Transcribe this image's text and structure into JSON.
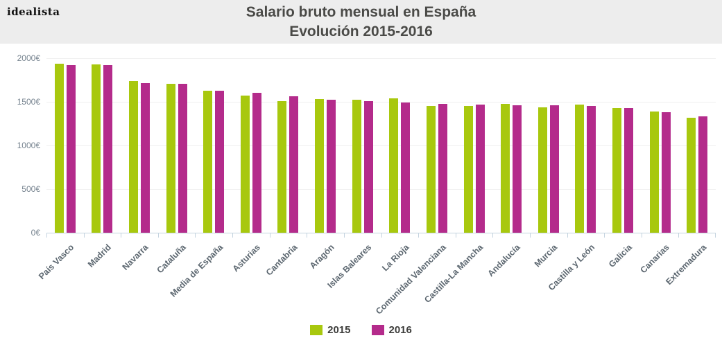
{
  "logo_text": "idealista",
  "header": {
    "title_line1": "Salario bruto mensual en España",
    "title_line2": "Evolución 2015-2016"
  },
  "colors": {
    "header_bg": "#ededed",
    "title_text": "#4a4a47",
    "logo_text": "#111111",
    "series_2015": "#a8c80e",
    "series_2016": "#b42b8b",
    "gridline": "#f0f0f0",
    "axis_line": "#c4d3df",
    "y_label": "#75828e",
    "x_label": "#5c6770",
    "legend_text": "#3d3d3b"
  },
  "chart_data": {
    "type": "bar",
    "title": "Salario bruto mensual en España — Evolución 2015-2016",
    "categories": [
      "País Vasco",
      "Madrid",
      "Navarra",
      "Cataluña",
      "Media de España",
      "Asturias",
      "Cantabria",
      "Aragón",
      "Islas Baleares",
      "La Rioja",
      "Comunidad Valenciana",
      "Castilla-La Mancha",
      "Andalucía",
      "Murcia",
      "Castilla y León",
      "Galicia",
      "Canarias",
      "Extremadura"
    ],
    "series": [
      {
        "name": "2015",
        "color": "#a8c80e",
        "values": [
          1935,
          1930,
          1740,
          1705,
          1625,
          1570,
          1505,
          1530,
          1525,
          1540,
          1450,
          1450,
          1480,
          1440,
          1470,
          1430,
          1390,
          1315
        ]
      },
      {
        "name": "2016",
        "color": "#b42b8b",
        "values": [
          1920,
          1920,
          1715,
          1705,
          1630,
          1605,
          1560,
          1520,
          1505,
          1490,
          1475,
          1465,
          1460,
          1460,
          1450,
          1430,
          1380,
          1330
        ]
      }
    ],
    "xlabel": "",
    "ylabel": "",
    "ylim": [
      0,
      2000
    ],
    "y_ticks": [
      0,
      500,
      1000,
      1500,
      2000
    ],
    "y_tick_labels": [
      "0€",
      "500€",
      "1000€",
      "1500€",
      "2000€"
    ],
    "currency_suffix": "€",
    "grid": true,
    "legend_position": "bottom"
  }
}
